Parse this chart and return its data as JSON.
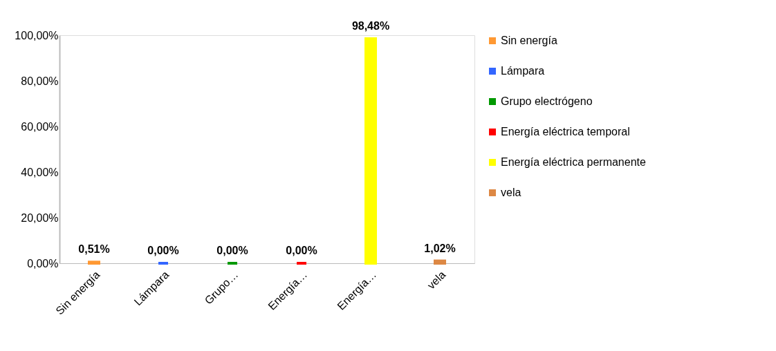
{
  "chart_data": {
    "type": "bar",
    "categories": [
      "Sin energía",
      "Lámpara",
      "Grupo…",
      "Energía…",
      "Energía…",
      "vela"
    ],
    "series": [
      {
        "name": "Sin energía",
        "color": "#ff9933",
        "values": [
          0.51,
          null,
          null,
          null,
          null,
          null
        ],
        "value_labels": [
          "0,51%",
          null,
          null,
          null,
          null,
          null
        ]
      },
      {
        "name": "Lámpara",
        "color": "#3366ff",
        "values": [
          null,
          0.0,
          null,
          null,
          null,
          null
        ],
        "value_labels": [
          null,
          "0,00%",
          null,
          null,
          null,
          null
        ]
      },
      {
        "name": "Grupo electrógeno",
        "color": "#009900",
        "values": [
          null,
          null,
          0.0,
          null,
          null,
          null
        ],
        "value_labels": [
          null,
          null,
          "0,00%",
          null,
          null,
          null
        ]
      },
      {
        "name": "Energía eléctrica temporal",
        "color": "#ff0000",
        "values": [
          null,
          null,
          null,
          0.0,
          null,
          null
        ],
        "value_labels": [
          null,
          null,
          null,
          "0,00%",
          null,
          null
        ]
      },
      {
        "name": "Energía eléctrica permanente",
        "color": "#ffff00",
        "values": [
          null,
          null,
          null,
          null,
          98.48,
          null
        ],
        "value_labels": [
          null,
          null,
          null,
          null,
          "98,48%",
          null
        ]
      },
      {
        "name": "vela",
        "color": "#dd8844",
        "values": [
          null,
          null,
          null,
          null,
          null,
          1.02
        ],
        "value_labels": [
          null,
          null,
          null,
          null,
          null,
          "1,02%"
        ]
      }
    ],
    "ylim": [
      0,
      100
    ],
    "yticks": [
      {
        "value": 0,
        "label": "0,00%"
      },
      {
        "value": 20,
        "label": "20,00%"
      },
      {
        "value": 40,
        "label": "40,00%"
      },
      {
        "value": 60,
        "label": "60,00%"
      },
      {
        "value": 80,
        "label": "80,00%"
      },
      {
        "value": 100,
        "label": "100,00%"
      }
    ],
    "grid": false,
    "legend": "right"
  }
}
